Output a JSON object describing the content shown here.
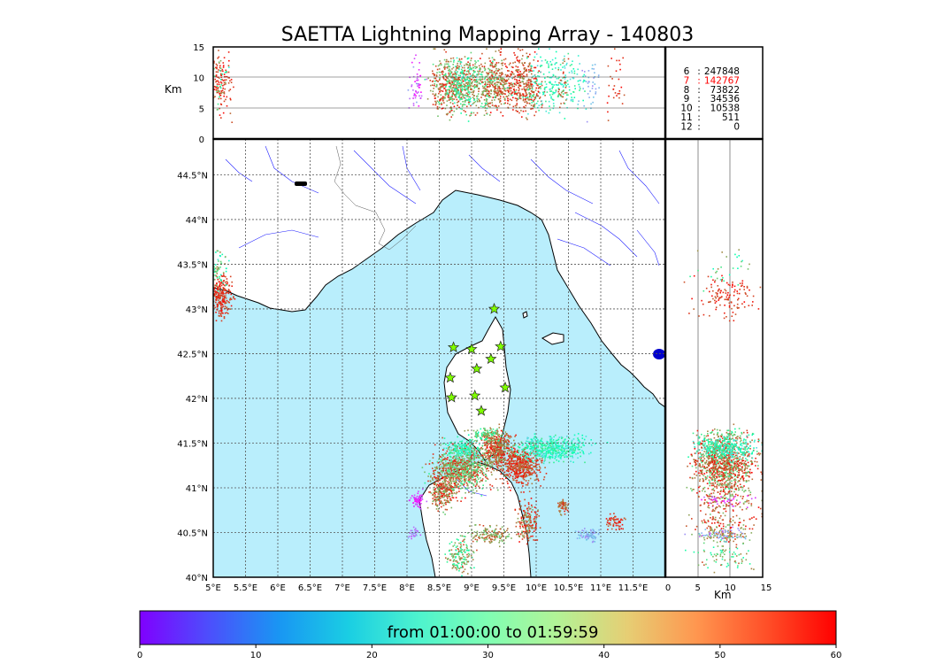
{
  "chart_data": {
    "type": "scatter",
    "title": "SAETTA Lightning Mapping Array - 140803",
    "map": {
      "lon_range": [
        5,
        12
      ],
      "lat_range": [
        40,
        44.9
      ],
      "lon_ticks": [
        "5°E",
        "5.5°E",
        "6°E",
        "6.5°E",
        "7°E",
        "7.5°E",
        "8°E",
        "8.5°E",
        "9°E",
        "9.5°E",
        "10°E",
        "10.5°E",
        "11°E",
        "11.5°E"
      ],
      "lat_ticks": [
        "40°N",
        "40.5°N",
        "41°N",
        "41.5°N",
        "42°N",
        "42.5°N",
        "43°N",
        "43.5°N",
        "44°N",
        "44.5°N"
      ],
      "sea_color": "#b9eefc",
      "land_color": "#ffffff",
      "stations": [
        {
          "lon": 9.35,
          "lat": 43.0
        },
        {
          "lon": 8.72,
          "lat": 42.57
        },
        {
          "lon": 9.0,
          "lat": 42.55
        },
        {
          "lon": 9.45,
          "lat": 42.58
        },
        {
          "lon": 9.3,
          "lat": 42.44
        },
        {
          "lon": 9.08,
          "lat": 42.33
        },
        {
          "lon": 8.67,
          "lat": 42.23
        },
        {
          "lon": 9.52,
          "lat": 42.12
        },
        {
          "lon": 9.05,
          "lat": 42.03
        },
        {
          "lon": 8.69,
          "lat": 42.01
        },
        {
          "lon": 9.15,
          "lat": 41.86
        }
      ]
    },
    "altitude_panel_top": {
      "ylabel": "Km",
      "yticks": [
        "0",
        "5",
        "10",
        "15"
      ],
      "ylim": [
        0,
        15
      ]
    },
    "altitude_panel_right": {
      "xlabel": "Km",
      "xticks": [
        "0",
        "5",
        "10",
        "15"
      ],
      "xlim": [
        0,
        15
      ]
    },
    "station_counts": [
      {
        "n": "6",
        "count": "247848",
        "color": "#000000"
      },
      {
        "n": "7",
        "count": "142767",
        "color": "#ff0000"
      },
      {
        "n": "8",
        "count": "73822",
        "color": "#000000"
      },
      {
        "n": "9",
        "count": "34536",
        "color": "#000000"
      },
      {
        "n": "10",
        "count": "10538",
        "color": "#000000"
      },
      {
        "n": "11",
        "count": "511",
        "color": "#000000"
      },
      {
        "n": "12",
        "count": "0",
        "color": "#000000"
      }
    ],
    "colorbar": {
      "label": "from 01:00:00 to 01:59:59",
      "ticks": [
        "0",
        "10",
        "20",
        "30",
        "40",
        "50",
        "60"
      ],
      "range": [
        0,
        60
      ],
      "colormap": "rainbow"
    },
    "clusters": [
      {
        "lon": 8.85,
        "lat": 41.22,
        "slon": 0.22,
        "slat": 0.12,
        "n": 900,
        "t": [
          35,
          60
        ]
      },
      {
        "lon": 9.4,
        "lat": 41.45,
        "slon": 0.12,
        "slat": 0.1,
        "n": 500,
        "t": [
          45,
          60
        ]
      },
      {
        "lon": 9.75,
        "lat": 41.25,
        "slon": 0.15,
        "slat": 0.1,
        "n": 500,
        "t": [
          50,
          60
        ]
      },
      {
        "lon": 10.25,
        "lat": 41.45,
        "slon": 0.28,
        "slat": 0.07,
        "n": 500,
        "t": [
          18,
          40
        ]
      },
      {
        "lon": 8.55,
        "lat": 40.98,
        "slon": 0.1,
        "slat": 0.1,
        "n": 300,
        "t": [
          42,
          60
        ]
      },
      {
        "lon": 8.15,
        "lat": 40.87,
        "slon": 0.05,
        "slat": 0.05,
        "n": 70,
        "t": [
          0,
          8
        ]
      },
      {
        "lon": 8.85,
        "lat": 41.45,
        "slon": 0.12,
        "slat": 0.05,
        "n": 150,
        "t": [
          20,
          42
        ]
      },
      {
        "lon": 9.85,
        "lat": 40.62,
        "slon": 0.08,
        "slat": 0.1,
        "n": 180,
        "t": [
          45,
          60
        ]
      },
      {
        "lon": 9.3,
        "lat": 40.48,
        "slon": 0.15,
        "slat": 0.05,
        "n": 150,
        "t": [
          40,
          55
        ]
      },
      {
        "lon": 10.4,
        "lat": 40.8,
        "slon": 0.05,
        "slat": 0.04,
        "n": 60,
        "t": [
          48,
          58
        ]
      },
      {
        "lon": 10.8,
        "lat": 40.48,
        "slon": 0.08,
        "slat": 0.03,
        "n": 80,
        "t": [
          10,
          18
        ]
      },
      {
        "lon": 11.2,
        "lat": 40.62,
        "slon": 0.07,
        "slat": 0.04,
        "n": 60,
        "t": [
          52,
          60
        ]
      },
      {
        "lon": 8.8,
        "lat": 40.25,
        "slon": 0.1,
        "slat": 0.1,
        "n": 160,
        "t": [
          30,
          55
        ]
      },
      {
        "lon": 8.1,
        "lat": 40.5,
        "slon": 0.04,
        "slat": 0.03,
        "n": 30,
        "t": [
          5,
          15
        ]
      },
      {
        "lon": 5.1,
        "lat": 43.15,
        "slon": 0.08,
        "slat": 0.12,
        "n": 250,
        "t": [
          52,
          60
        ]
      },
      {
        "lon": 5.08,
        "lat": 43.45,
        "slon": 0.06,
        "slat": 0.1,
        "n": 60,
        "t": [
          20,
          50
        ]
      },
      {
        "lon": 9.2,
        "lat": 41.6,
        "slon": 0.12,
        "slat": 0.04,
        "n": 100,
        "t": [
          30,
          50
        ]
      }
    ]
  }
}
